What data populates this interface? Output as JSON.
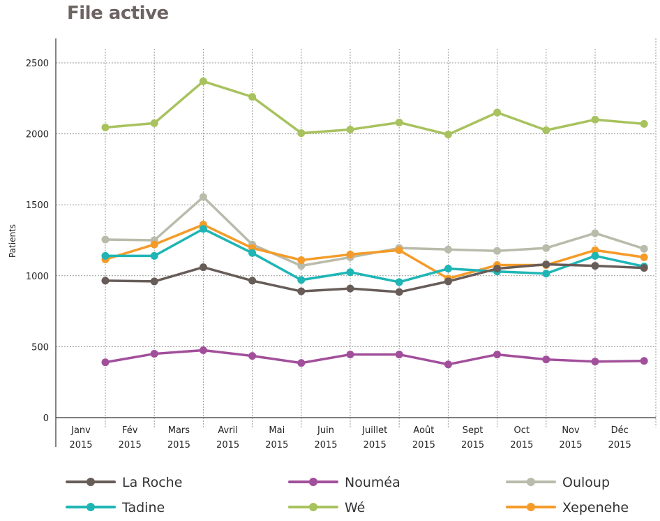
{
  "chart_data": {
    "type": "line",
    "title": "File active",
    "ylabel": "Patients",
    "xlabel": "",
    "ylim": [
      0,
      2500
    ],
    "yticks": [
      0,
      500,
      1000,
      1500,
      2000,
      2500
    ],
    "categories": [
      [
        "Janv",
        "2015"
      ],
      [
        "Fév",
        "2015"
      ],
      [
        "Mars",
        "2015"
      ],
      [
        "Avril",
        "2015"
      ],
      [
        "Mai",
        "2015"
      ],
      [
        "Juin",
        "2015"
      ],
      [
        "Juillet",
        "2015"
      ],
      [
        "Août",
        "2015"
      ],
      [
        "Sept",
        "2015"
      ],
      [
        "Oct",
        "2015"
      ],
      [
        "Nov",
        "2015"
      ],
      [
        "Déc",
        "2015"
      ]
    ],
    "grid": true,
    "legend_position": "bottom",
    "series": [
      {
        "name": "Wé",
        "color": "#a8c25e",
        "values": [
          2045,
          2075,
          2370,
          2260,
          2005,
          2030,
          2080,
          1995,
          2150,
          2025,
          2100,
          2070
        ]
      },
      {
        "name": "Ouloup",
        "color": "#b9bbab",
        "values": [
          1255,
          1250,
          1555,
          1220,
          1070,
          1130,
          1195,
          1185,
          1175,
          1195,
          1300,
          1190
        ]
      },
      {
        "name": "Xepenehe",
        "color": "#f49b29",
        "values": [
          1115,
          1220,
          1360,
          1195,
          1110,
          1150,
          1180,
          980,
          1075,
          1075,
          1180,
          1130
        ]
      },
      {
        "name": "Tadine",
        "color": "#1fb5b5",
        "values": [
          1140,
          1140,
          1330,
          1160,
          970,
          1025,
          955,
          1050,
          1030,
          1015,
          1140,
          1065
        ]
      },
      {
        "name": "La Roche",
        "color": "#675c58",
        "values": [
          965,
          960,
          1060,
          965,
          890,
          910,
          885,
          960,
          1050,
          1080,
          1070,
          1055
        ]
      },
      {
        "name": "Nouméa",
        "color": "#a24f9b",
        "values": [
          390,
          450,
          475,
          435,
          385,
          445,
          445,
          375,
          445,
          410,
          395,
          400
        ]
      }
    ],
    "legend_order": [
      "La Roche",
      "Nouméa",
      "Ouloup",
      "Tadine",
      "Wé",
      "Xepenehe"
    ]
  }
}
